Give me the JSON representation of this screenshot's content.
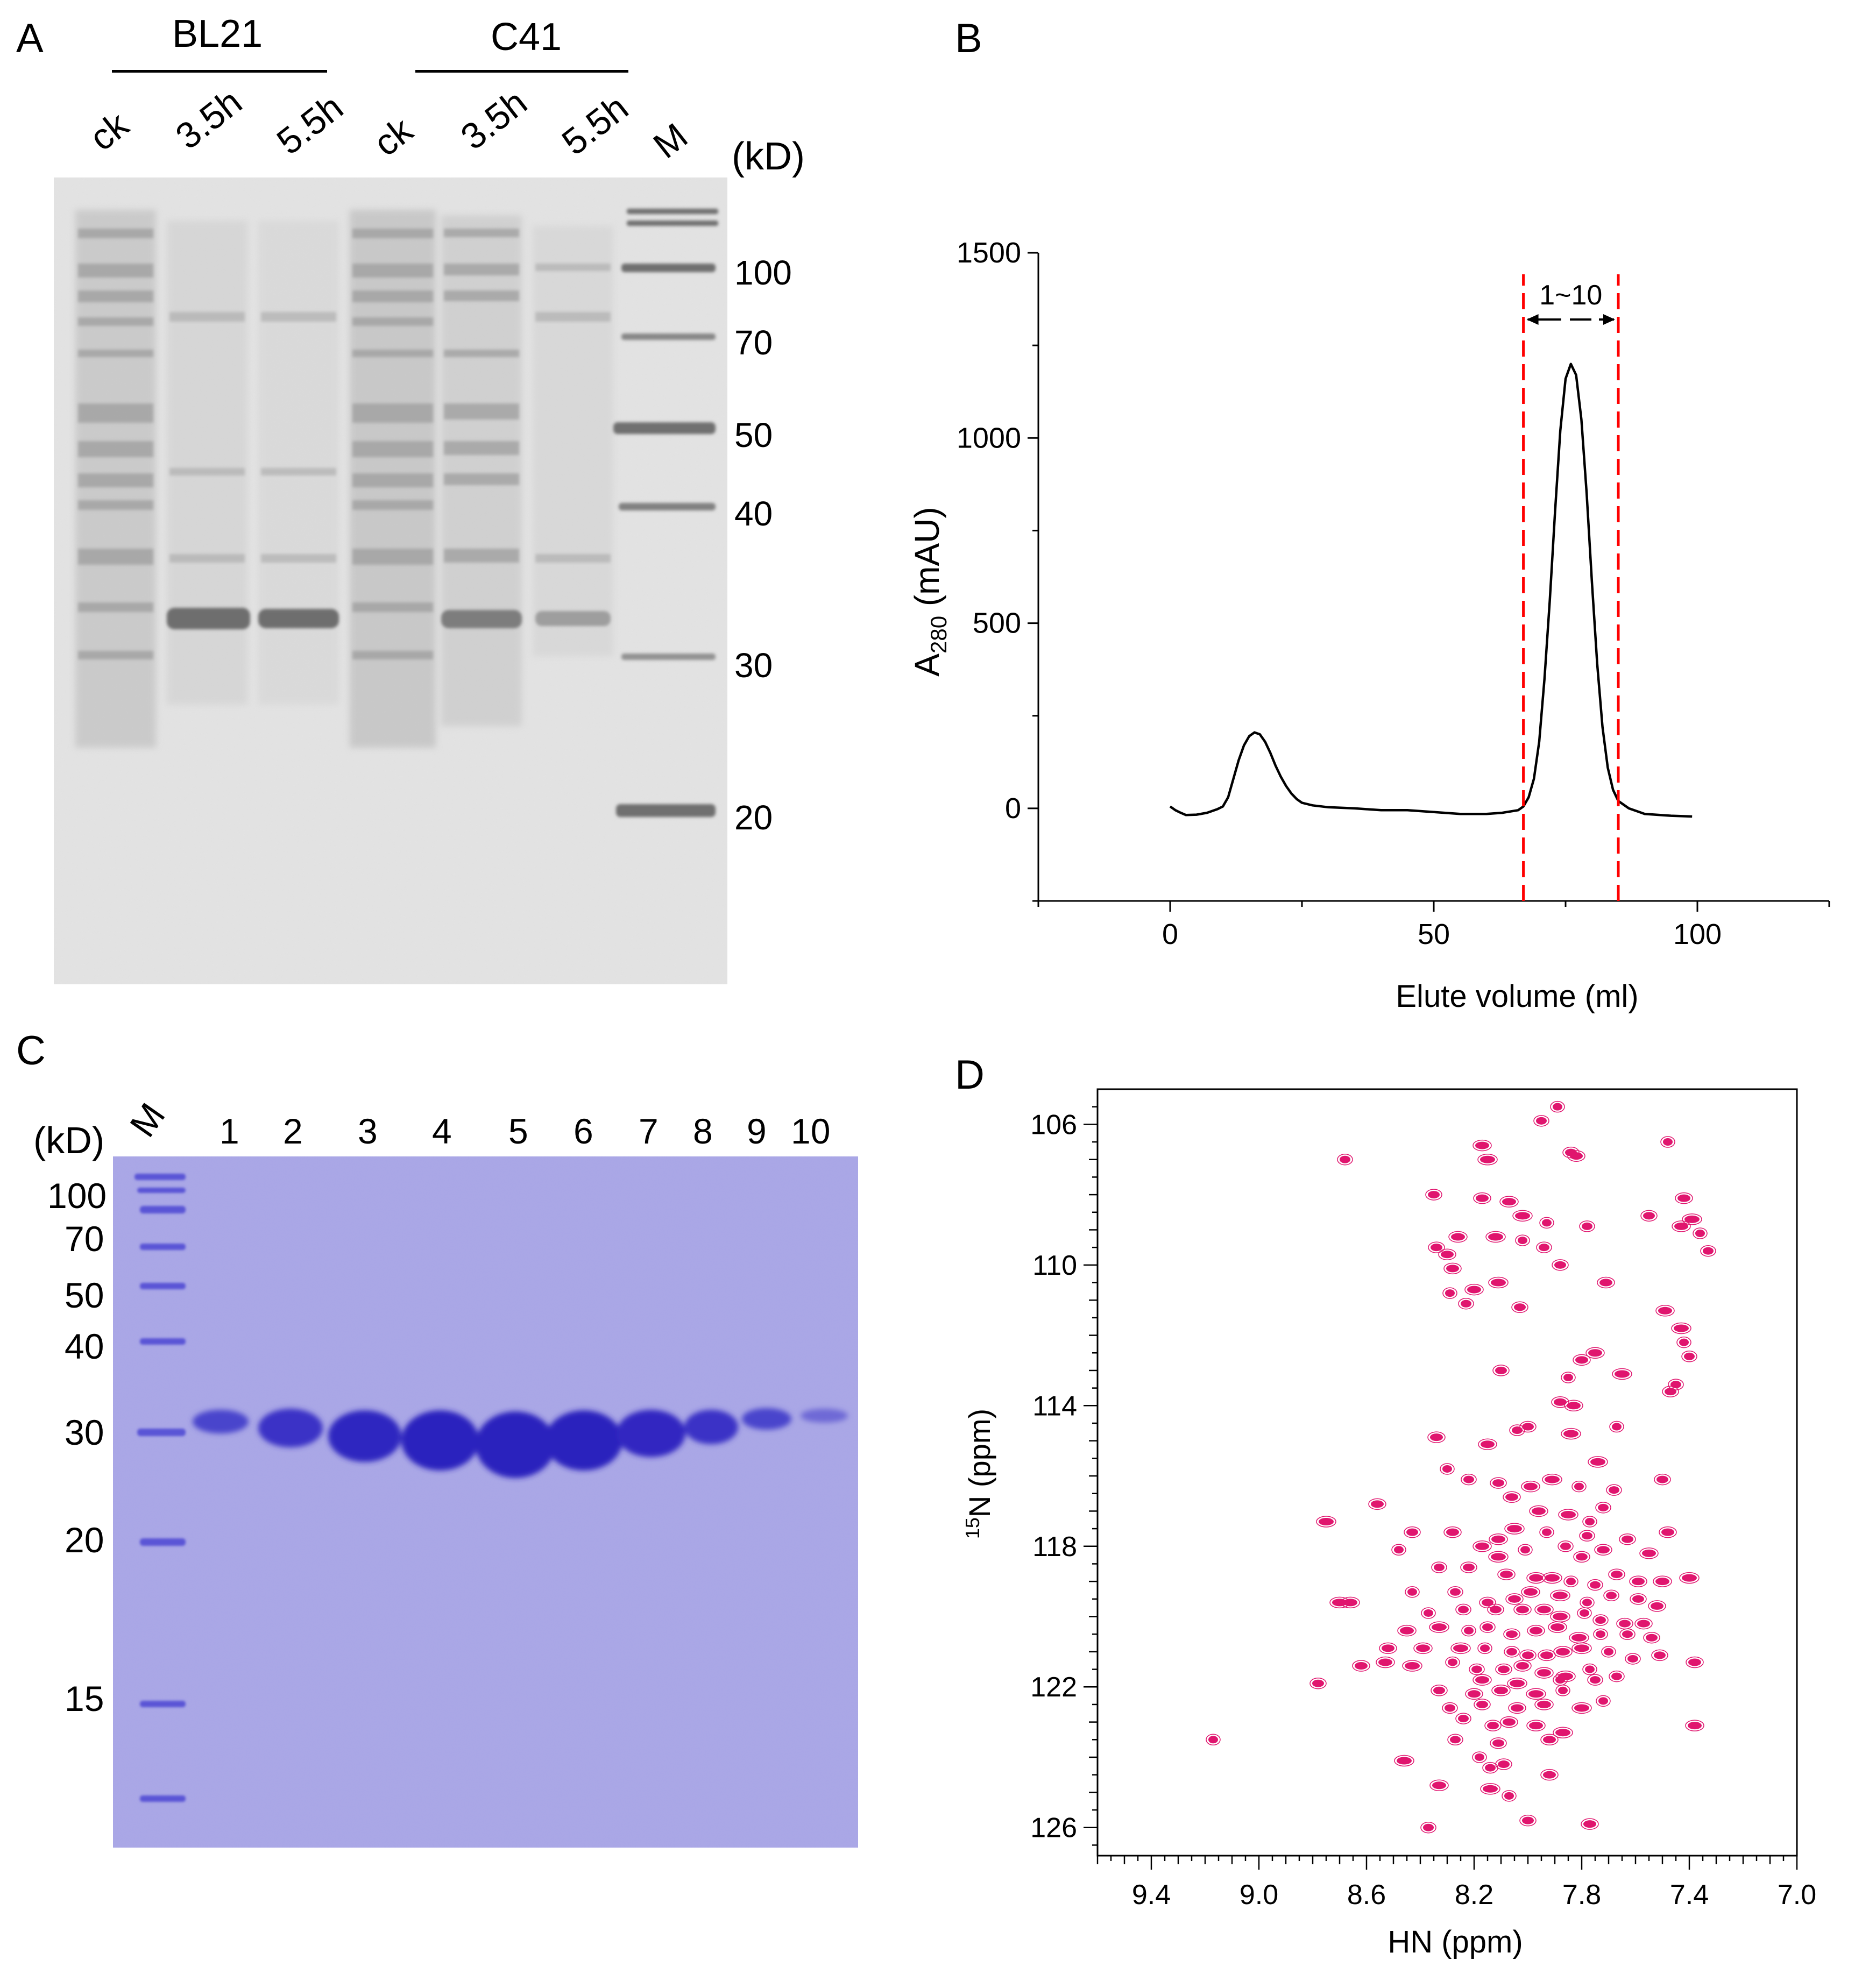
{
  "panels": {
    "a": {
      "letter": "A",
      "group_labels": [
        "BL21",
        "C41"
      ],
      "lane_labels": [
        "ck",
        "3.5h",
        "5.5h",
        "ck",
        "3.5h",
        "5.5h",
        "M"
      ],
      "unit": "(kD)",
      "marker_labels": [
        "100",
        "70",
        "50",
        "40",
        "30",
        "20"
      ]
    },
    "b": {
      "letter": "B",
      "range_label": "1~10"
    },
    "c": {
      "letter": "C",
      "unit": "(kD)",
      "lane_labels": [
        "M",
        "1",
        "2",
        "3",
        "4",
        "5",
        "6",
        "7",
        "8",
        "9",
        "10"
      ],
      "marker_labels": [
        "100",
        "70",
        "50",
        "40",
        "30",
        "20",
        "15"
      ]
    },
    "d": {
      "letter": "D"
    }
  },
  "chart_data": [
    {
      "type": "line",
      "title": "",
      "xlabel": "Elute volume (ml)",
      "ylabel": "A280 (mAU)",
      "ylabel_main": "A",
      "ylabel_sub": "280",
      "ylabel_unit": " (mAU)",
      "xlim": [
        -25,
        125
      ],
      "ylim": [
        -250,
        1500
      ],
      "xticks": [
        0,
        50,
        100
      ],
      "yticks": [
        0,
        500,
        1000,
        1500
      ],
      "series": [
        {
          "name": "absorbance",
          "color": "#000000",
          "x": [
            0,
            1,
            2,
            3,
            5,
            7,
            9,
            10,
            11,
            12,
            13,
            14,
            15,
            16,
            17,
            18,
            19,
            20,
            21,
            22,
            23,
            24,
            25,
            27,
            30,
            35,
            40,
            45,
            50,
            55,
            60,
            63,
            66,
            67,
            68,
            69,
            70,
            71,
            72,
            73,
            74,
            75,
            76,
            77,
            78,
            79,
            80,
            81,
            82,
            83,
            84,
            85,
            87,
            90,
            95,
            99
          ],
          "y": [
            5,
            -5,
            -12,
            -18,
            -17,
            -12,
            -2,
            5,
            30,
            80,
            130,
            170,
            195,
            205,
            200,
            180,
            150,
            115,
            85,
            60,
            40,
            25,
            15,
            8,
            3,
            0,
            -5,
            -5,
            -10,
            -15,
            -15,
            -12,
            -5,
            5,
            30,
            80,
            180,
            350,
            560,
            800,
            1020,
            1160,
            1200,
            1170,
            1050,
            850,
            610,
            390,
            220,
            110,
            50,
            20,
            0,
            -15,
            -20,
            -22
          ]
        }
      ],
      "annotations": [
        {
          "type": "vline",
          "x": 67,
          "color": "#ff0000",
          "style": "dashed"
        },
        {
          "type": "vline",
          "x": 85,
          "color": "#ff0000",
          "style": "dashed"
        },
        {
          "type": "range-arrow",
          "x0": 67,
          "x1": 85,
          "y": 1320,
          "text": "1~10"
        }
      ]
    },
    {
      "type": "scatter",
      "title": "",
      "xlabel": "HN (ppm)",
      "ylabel_sup": "15",
      "ylabel_main": "N (ppm)",
      "ylabel": "15N (ppm)",
      "xlim": [
        9.6,
        7.0
      ],
      "ylim": [
        105,
        126.8
      ],
      "xticks": [
        9.4,
        9.0,
        8.6,
        8.2,
        7.8,
        7.4,
        7.0
      ],
      "yticks": [
        106,
        110,
        114,
        118,
        122,
        126
      ],
      "series": [
        {
          "name": "peaks",
          "color": "#e0156e",
          "points": [
            [
              7.89,
              105.5
            ],
            [
              7.95,
              105.9
            ],
            [
              7.84,
              106.8
            ],
            [
              7.82,
              106.9
            ],
            [
              8.17,
              106.6
            ],
            [
              8.15,
              107.0
            ],
            [
              7.48,
              106.5
            ],
            [
              8.68,
              107.0
            ],
            [
              8.35,
              108.0
            ],
            [
              8.17,
              108.1
            ],
            [
              8.07,
              108.2
            ],
            [
              8.02,
              108.6
            ],
            [
              7.93,
              108.8
            ],
            [
              7.78,
              108.9
            ],
            [
              7.55,
              108.6
            ],
            [
              7.42,
              108.1
            ],
            [
              7.43,
              108.9
            ],
            [
              7.39,
              108.7
            ],
            [
              7.36,
              109.1
            ],
            [
              7.33,
              109.6
            ],
            [
              8.34,
              109.5
            ],
            [
              8.3,
              109.7
            ],
            [
              8.26,
              109.2
            ],
            [
              8.12,
              109.2
            ],
            [
              8.02,
              109.3
            ],
            [
              7.94,
              109.5
            ],
            [
              7.88,
              110.0
            ],
            [
              8.28,
              110.1
            ],
            [
              8.2,
              110.7
            ],
            [
              8.11,
              110.5
            ],
            [
              8.29,
              110.8
            ],
            [
              8.23,
              111.1
            ],
            [
              8.03,
              111.2
            ],
            [
              7.71,
              110.5
            ],
            [
              7.49,
              111.3
            ],
            [
              7.43,
              111.8
            ],
            [
              7.42,
              112.2
            ],
            [
              7.4,
              112.6
            ],
            [
              8.1,
              113.0
            ],
            [
              7.8,
              112.7
            ],
            [
              7.75,
              112.5
            ],
            [
              7.65,
              113.1
            ],
            [
              7.85,
              113.2
            ],
            [
              7.45,
              113.4
            ],
            [
              7.47,
              113.6
            ],
            [
              7.88,
              113.9
            ],
            [
              7.83,
              114.0
            ],
            [
              7.84,
              114.8
            ],
            [
              7.67,
              114.6
            ],
            [
              8.04,
              114.7
            ],
            [
              8.0,
              114.6
            ],
            [
              8.34,
              114.9
            ],
            [
              8.15,
              115.1
            ],
            [
              7.74,
              115.6
            ],
            [
              8.3,
              115.8
            ],
            [
              8.22,
              116.1
            ],
            [
              8.11,
              116.2
            ],
            [
              8.06,
              116.6
            ],
            [
              7.99,
              116.3
            ],
            [
              7.91,
              116.1
            ],
            [
              7.81,
              116.3
            ],
            [
              7.68,
              116.4
            ],
            [
              7.5,
              116.1
            ],
            [
              8.56,
              116.8
            ],
            [
              7.96,
              117.0
            ],
            [
              7.85,
              117.1
            ],
            [
              7.77,
              117.3
            ],
            [
              7.72,
              116.9
            ],
            [
              8.43,
              117.6
            ],
            [
              8.28,
              117.6
            ],
            [
              8.11,
              117.8
            ],
            [
              8.05,
              117.5
            ],
            [
              7.93,
              117.6
            ],
            [
              7.78,
              117.7
            ],
            [
              7.63,
              117.8
            ],
            [
              7.48,
              117.6
            ],
            [
              8.17,
              118.0
            ],
            [
              8.11,
              118.3
            ],
            [
              8.01,
              118.1
            ],
            [
              7.86,
              118.0
            ],
            [
              7.8,
              118.3
            ],
            [
              7.72,
              118.1
            ],
            [
              7.55,
              118.2
            ],
            [
              8.75,
              117.3
            ],
            [
              8.48,
              118.1
            ],
            [
              8.33,
              118.6
            ],
            [
              8.22,
              118.6
            ],
            [
              8.08,
              118.8
            ],
            [
              7.97,
              118.9
            ],
            [
              7.91,
              118.9
            ],
            [
              7.84,
              119.0
            ],
            [
              7.75,
              119.1
            ],
            [
              7.67,
              118.8
            ],
            [
              7.59,
              119.0
            ],
            [
              7.5,
              119.0
            ],
            [
              7.4,
              118.9
            ],
            [
              8.43,
              119.3
            ],
            [
              8.27,
              119.3
            ],
            [
              8.15,
              119.6
            ],
            [
              8.05,
              119.5
            ],
            [
              7.99,
              119.3
            ],
            [
              7.88,
              119.4
            ],
            [
              7.78,
              119.6
            ],
            [
              7.69,
              119.4
            ],
            [
              7.59,
              119.5
            ],
            [
              7.52,
              119.7
            ],
            [
              8.66,
              119.6
            ],
            [
              8.7,
              119.6
            ],
            [
              8.37,
              119.9
            ],
            [
              8.24,
              119.8
            ],
            [
              8.12,
              119.8
            ],
            [
              8.02,
              119.8
            ],
            [
              7.94,
              119.8
            ],
            [
              7.88,
              120.0
            ],
            [
              7.79,
              119.9
            ],
            [
              7.73,
              120.1
            ],
            [
              7.64,
              120.2
            ],
            [
              7.57,
              120.2
            ],
            [
              8.45,
              120.4
            ],
            [
              8.33,
              120.3
            ],
            [
              8.22,
              120.4
            ],
            [
              8.15,
              120.3
            ],
            [
              8.06,
              120.5
            ],
            [
              7.97,
              120.4
            ],
            [
              7.89,
              120.3
            ],
            [
              7.81,
              120.6
            ],
            [
              7.73,
              120.5
            ],
            [
              7.63,
              120.5
            ],
            [
              7.54,
              120.6
            ],
            [
              8.52,
              120.9
            ],
            [
              8.39,
              120.9
            ],
            [
              8.25,
              120.9
            ],
            [
              8.16,
              120.9
            ],
            [
              8.06,
              121.0
            ],
            [
              8.0,
              121.1
            ],
            [
              7.93,
              121.1
            ],
            [
              7.87,
              121.0
            ],
            [
              7.8,
              120.9
            ],
            [
              7.7,
              121.0
            ],
            [
              7.61,
              121.2
            ],
            [
              7.51,
              121.1
            ],
            [
              7.38,
              121.3
            ],
            [
              8.53,
              121.3
            ],
            [
              8.43,
              121.4
            ],
            [
              8.28,
              121.3
            ],
            [
              8.19,
              121.5
            ],
            [
              8.09,
              121.5
            ],
            [
              8.02,
              121.4
            ],
            [
              7.94,
              121.6
            ],
            [
              7.86,
              121.7
            ],
            [
              7.77,
              121.5
            ],
            [
              7.67,
              121.7
            ],
            [
              8.78,
              121.9
            ],
            [
              8.62,
              121.4
            ],
            [
              8.17,
              121.8
            ],
            [
              8.04,
              121.9
            ],
            [
              7.88,
              121.8
            ],
            [
              7.75,
              121.8
            ],
            [
              8.33,
              122.1
            ],
            [
              8.2,
              122.2
            ],
            [
              8.1,
              122.1
            ],
            [
              7.97,
              122.2
            ],
            [
              7.87,
              122.1
            ],
            [
              8.29,
              122.6
            ],
            [
              8.17,
              122.5
            ],
            [
              8.04,
              122.6
            ],
            [
              7.94,
              122.5
            ],
            [
              7.8,
              122.6
            ],
            [
              7.72,
              122.4
            ],
            [
              8.24,
              122.9
            ],
            [
              8.13,
              123.1
            ],
            [
              8.07,
              123.0
            ],
            [
              7.97,
              123.1
            ],
            [
              7.87,
              123.3
            ],
            [
              9.17,
              123.5
            ],
            [
              8.27,
              123.5
            ],
            [
              8.11,
              123.6
            ],
            [
              7.92,
              123.5
            ],
            [
              7.38,
              123.1
            ],
            [
              8.46,
              124.1
            ],
            [
              8.18,
              124.0
            ],
            [
              8.14,
              124.3
            ],
            [
              8.09,
              124.2
            ],
            [
              7.92,
              124.5
            ],
            [
              8.33,
              124.8
            ],
            [
              8.14,
              124.9
            ],
            [
              8.07,
              125.1
            ],
            [
              8.37,
              126.0
            ],
            [
              8.0,
              125.8
            ],
            [
              7.77,
              125.9
            ]
          ]
        }
      ]
    }
  ]
}
